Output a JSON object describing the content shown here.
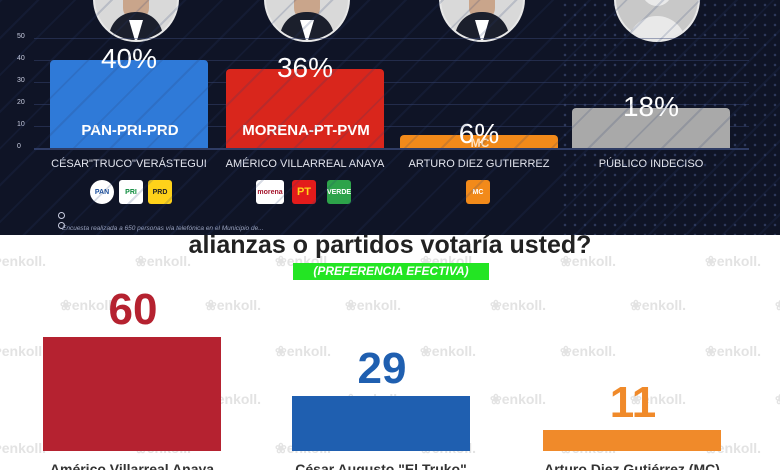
{
  "top_chart": {
    "chart_data": {
      "type": "bar",
      "categories": [
        "CÉSAR\"TRUCO\"VERÁSTEGUI",
        "AMÉRICO VILLARREAL ANAYA",
        "ARTURO DIEZ GUTIERREZ",
        "PÚBLICO INDECISO"
      ],
      "values": [
        40,
        36,
        6,
        18
      ],
      "labels": [
        "40%",
        "36%",
        "6%",
        "18%"
      ],
      "party_labels": [
        "PAN-PRI-PRD",
        "MORENA-PT-PVM",
        "MC",
        ""
      ],
      "yticks": [
        "50",
        "40",
        "30",
        "20",
        "10",
        "0"
      ],
      "ylim": [
        0,
        50
      ],
      "colors": [
        "#2f7ad8",
        "#d9261c",
        "#f28a1a",
        "#a9a9a9"
      ]
    },
    "logos": {
      "pan": "PAN",
      "pri": "PRI",
      "prd": "PRD",
      "morena": "morena",
      "pt": "PT",
      "verde": "VERDE",
      "mc": "MC"
    },
    "footnote": "Encuesta realizada a 650 personas vía telefónica en el Municipio de..."
  },
  "bottom_chart": {
    "question": "alianzas o partidos votaría usted?",
    "subtitle": "(PREFERENCIA EFECTIVA)",
    "watermark": "enkoll.",
    "chart_data": {
      "type": "bar",
      "categories": [
        "Américo Villarreal Anaya",
        "César Augusto \"El Truko\"",
        "Arturo Diez Gutiérrez (MC)"
      ],
      "values": [
        60,
        29,
        11
      ],
      "colors": [
        "#b52230",
        "#1f5fb0",
        "#f08a2a"
      ]
    }
  }
}
